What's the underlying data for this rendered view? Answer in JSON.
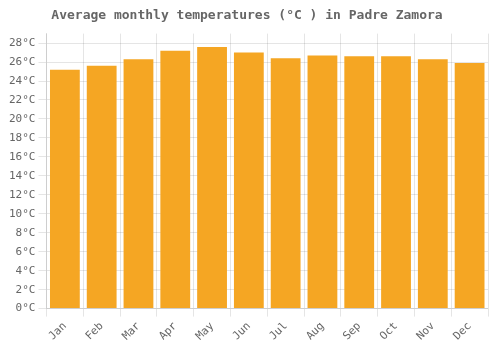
{
  "chart_data": {
    "type": "bar",
    "title": "Average monthly temperatures (°C ) in Padre Zamora",
    "categories": [
      "Jan",
      "Feb",
      "Mar",
      "Apr",
      "May",
      "Jun",
      "Jul",
      "Aug",
      "Sep",
      "Oct",
      "Nov",
      "Dec"
    ],
    "values": [
      25.2,
      25.6,
      26.3,
      27.2,
      27.6,
      27.0,
      26.4,
      26.7,
      26.6,
      26.6,
      26.3,
      25.9
    ],
    "color": "#F5A623",
    "ylim": [
      0,
      29
    ],
    "yticks": [
      {
        "value": 0,
        "label": "0°C"
      },
      {
        "value": 2,
        "label": "2°C"
      },
      {
        "value": 4,
        "label": "4°C"
      },
      {
        "value": 6,
        "label": "6°C"
      },
      {
        "value": 8,
        "label": "8°C"
      },
      {
        "value": 10,
        "label": "10°C"
      },
      {
        "value": 12,
        "label": "12°C"
      },
      {
        "value": 14,
        "label": "14°C"
      },
      {
        "value": 16,
        "label": "16°C"
      },
      {
        "value": 18,
        "label": "18°C"
      },
      {
        "value": 20,
        "label": "20°C"
      },
      {
        "value": 22,
        "label": "22°C"
      },
      {
        "value": 24,
        "label": "24°C"
      },
      {
        "value": 26,
        "label": "26°C"
      },
      {
        "value": 28,
        "label": "28°C"
      }
    ],
    "grid": true
  }
}
